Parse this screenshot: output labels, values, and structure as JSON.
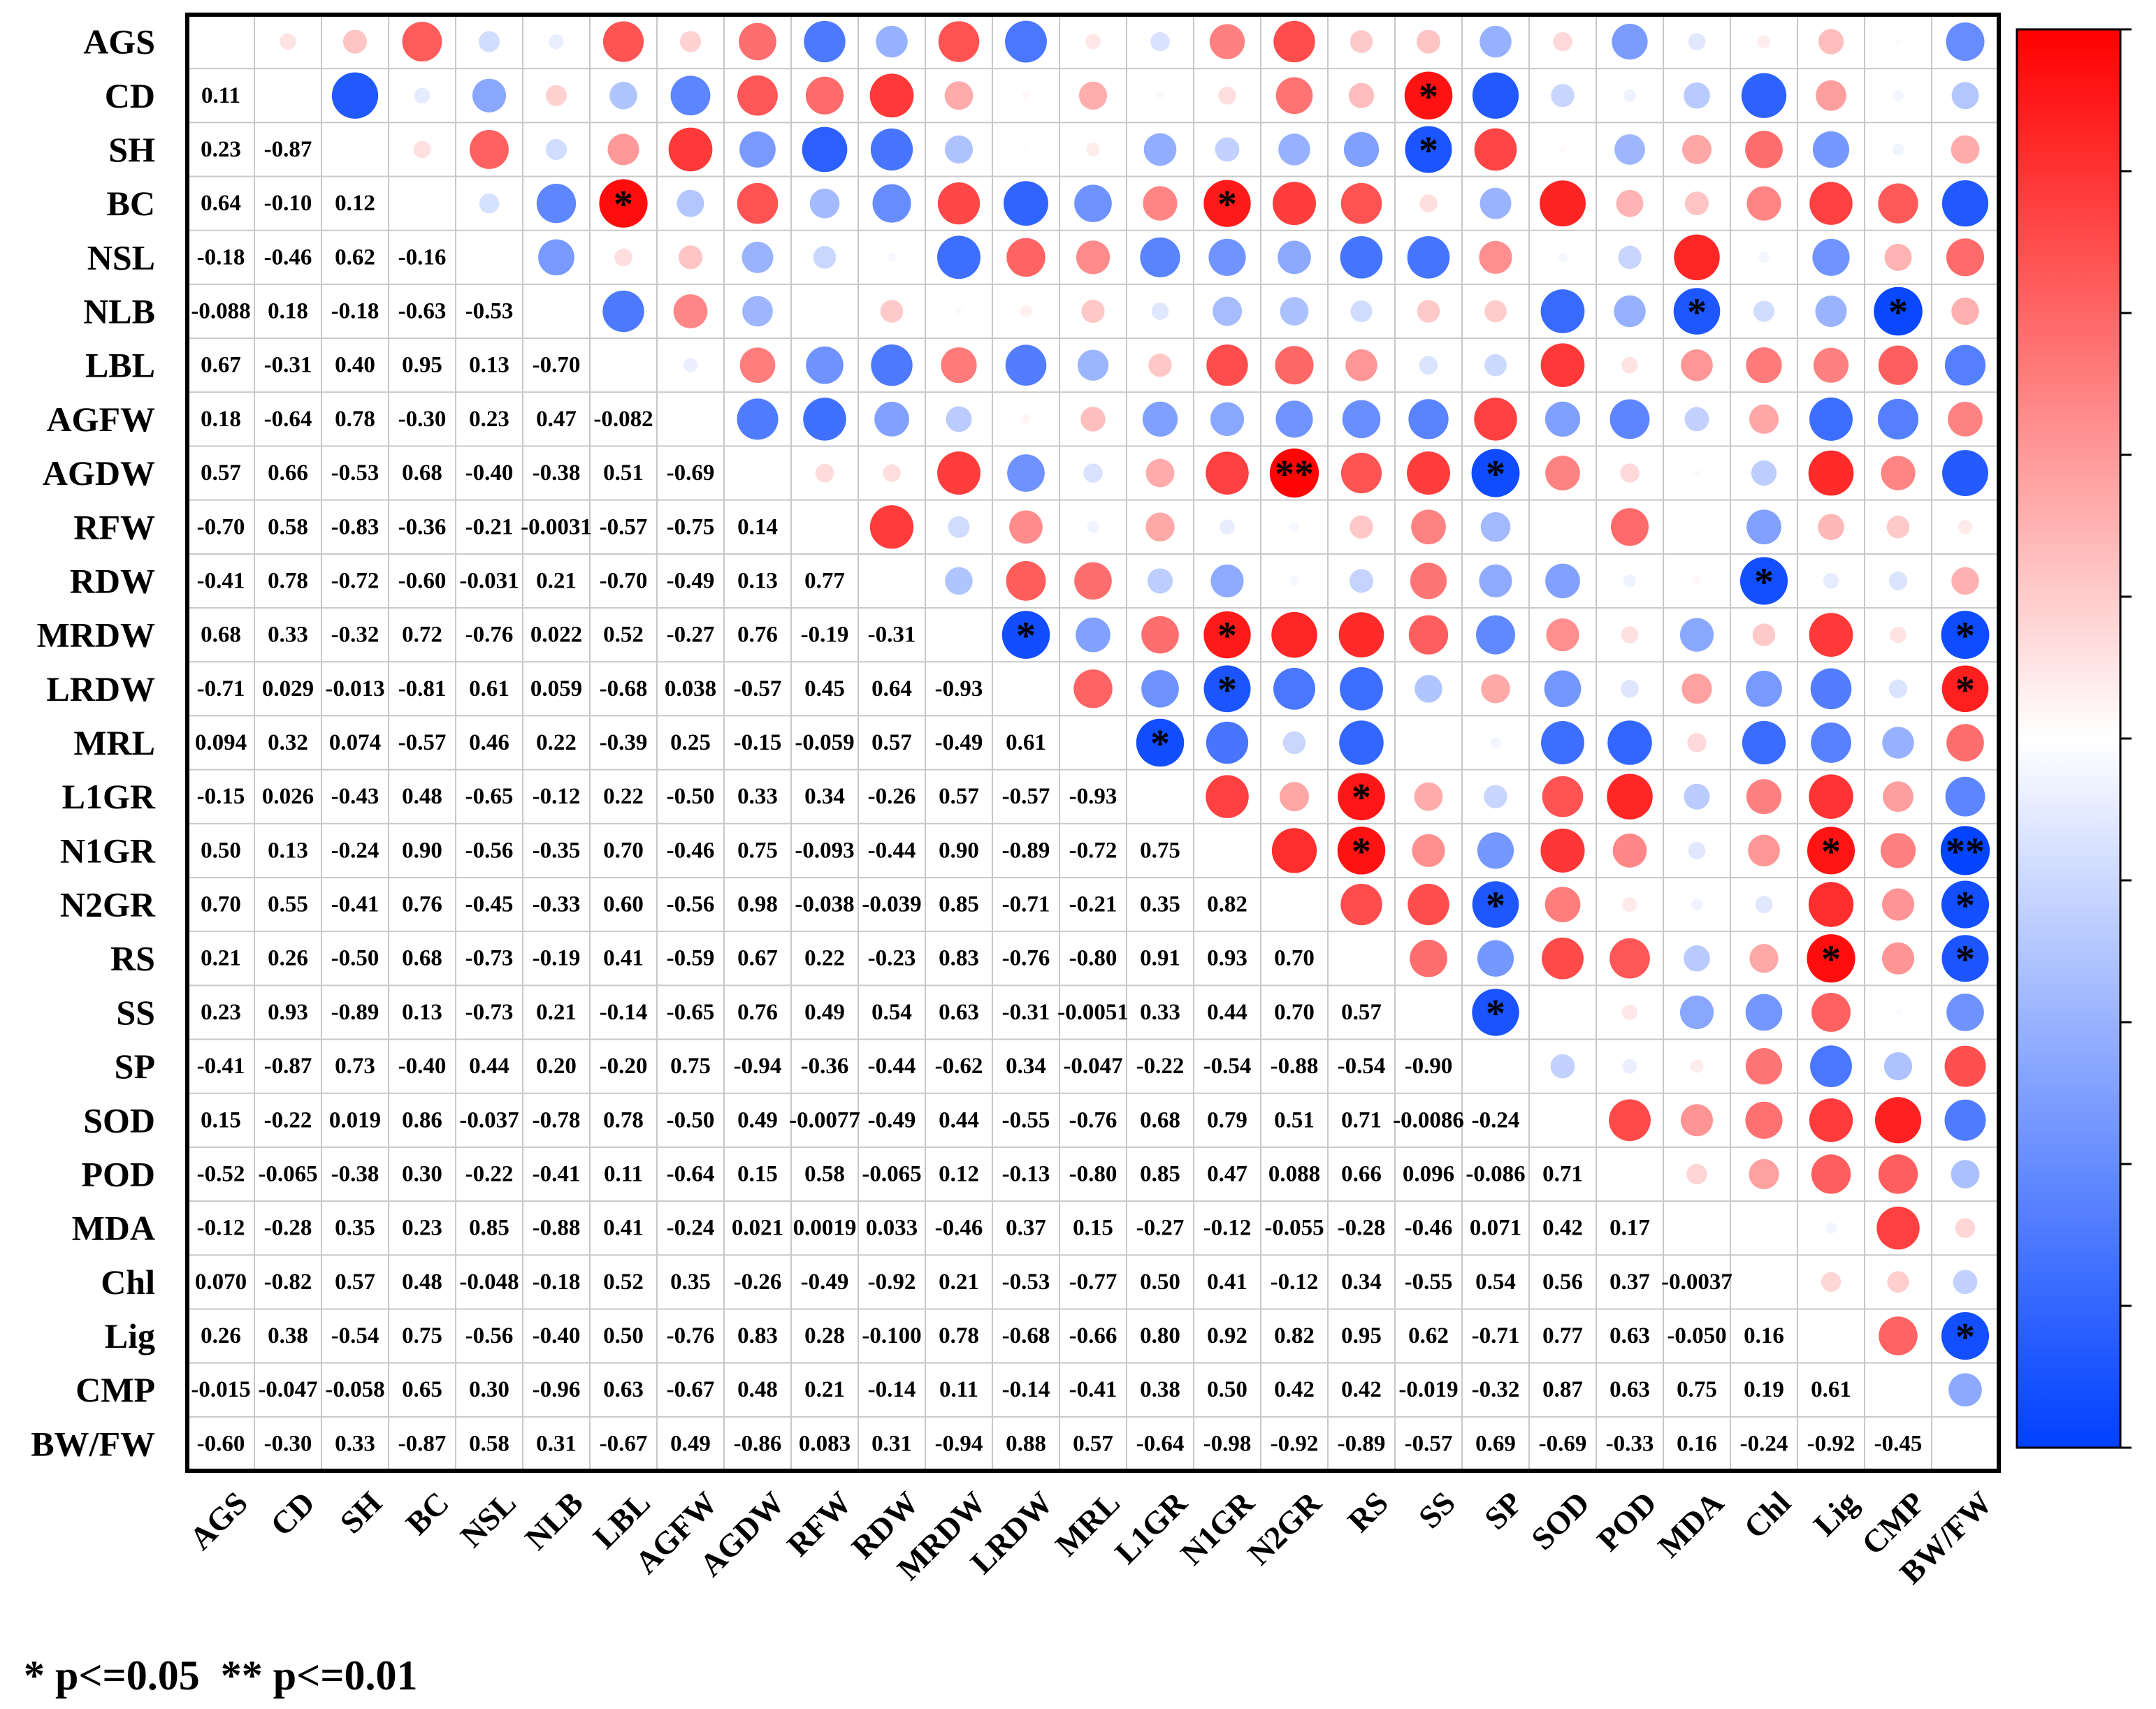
{
  "chart_data": {
    "type": "heatmap",
    "subtype": "correlation-matrix",
    "lower_triangle": "correlation coefficients as numbers",
    "upper_triangle": "circles, size and color by correlation",
    "variables": [
      "AGS",
      "CD",
      "SH",
      "BC",
      "NSL",
      "NLB",
      "LBL",
      "AGFW",
      "AGDW",
      "RFW",
      "RDW",
      "MRDW",
      "LRDW",
      "MRL",
      "L1GR",
      "N1GR",
      "N2GR",
      "RS",
      "SS",
      "SP",
      "SOD",
      "POD",
      "MDA",
      "Chl",
      "Lig",
      "CMP",
      "BW/FW"
    ],
    "lower_labels": [
      [],
      [
        "0.11"
      ],
      [
        "0.23",
        "-0.87"
      ],
      [
        "0.64",
        "-0.10",
        "0.12"
      ],
      [
        "-0.18",
        "-0.46",
        "0.62",
        "-0.16"
      ],
      [
        "-0.088",
        "0.18",
        "-0.18",
        "-0.63",
        "-0.53"
      ],
      [
        "0.67",
        "-0.31",
        "0.40",
        "0.95",
        "0.13",
        "-0.70"
      ],
      [
        "0.18",
        "-0.64",
        "0.78",
        "-0.30",
        "0.23",
        "0.47",
        "-0.082"
      ],
      [
        "0.57",
        "0.66",
        "-0.53",
        "0.68",
        "-0.40",
        "-0.38",
        "0.51",
        "-0.69"
      ],
      [
        "-0.70",
        "0.58",
        "-0.83",
        "-0.36",
        "-0.21",
        "-0.0031",
        "-0.57",
        "-0.75",
        "0.14"
      ],
      [
        "-0.41",
        "0.78",
        "-0.72",
        "-0.60",
        "-0.031",
        "0.21",
        "-0.70",
        "-0.49",
        "0.13",
        "0.77"
      ],
      [
        "0.68",
        "0.33",
        "-0.32",
        "0.72",
        "-0.76",
        "0.022",
        "0.52",
        "-0.27",
        "0.76",
        "-0.19",
        "-0.31"
      ],
      [
        "-0.71",
        "0.029",
        "-0.013",
        "-0.81",
        "0.61",
        "0.059",
        "-0.68",
        "0.038",
        "-0.57",
        "0.45",
        "0.64",
        "-0.93"
      ],
      [
        "0.094",
        "0.32",
        "0.074",
        "-0.57",
        "0.46",
        "0.22",
        "-0.39",
        "0.25",
        "-0.15",
        "-0.059",
        "0.57",
        "-0.49",
        "0.61"
      ],
      [
        "-0.15",
        "0.026",
        "-0.43",
        "0.48",
        "-0.65",
        "-0.12",
        "0.22",
        "-0.50",
        "0.33",
        "0.34",
        "-0.26",
        "0.57",
        "-0.57",
        "-0.93"
      ],
      [
        "0.50",
        "0.13",
        "-0.24",
        "0.90",
        "-0.56",
        "-0.35",
        "0.70",
        "-0.46",
        "0.75",
        "-0.093",
        "-0.44",
        "0.90",
        "-0.89",
        "-0.72",
        "0.75"
      ],
      [
        "0.70",
        "0.55",
        "-0.41",
        "0.76",
        "-0.45",
        "-0.33",
        "0.60",
        "-0.56",
        "0.98",
        "-0.038",
        "-0.039",
        "0.85",
        "-0.71",
        "-0.21",
        "0.35",
        "0.82"
      ],
      [
        "0.21",
        "0.26",
        "-0.50",
        "0.68",
        "-0.73",
        "-0.19",
        "0.41",
        "-0.59",
        "0.67",
        "0.22",
        "-0.23",
        "0.83",
        "-0.76",
        "-0.80",
        "0.91",
        "0.93",
        "0.70"
      ],
      [
        "0.23",
        "0.93",
        "-0.89",
        "0.13",
        "-0.73",
        "0.21",
        "-0.14",
        "-0.65",
        "0.76",
        "0.49",
        "0.54",
        "0.63",
        "-0.31",
        "-0.0051",
        "0.33",
        "0.44",
        "0.70",
        "0.57"
      ],
      [
        "-0.41",
        "-0.87",
        "0.73",
        "-0.40",
        "0.44",
        "0.20",
        "-0.20",
        "0.75",
        "-0.94",
        "-0.36",
        "-0.44",
        "-0.62",
        "0.34",
        "-0.047",
        "-0.22",
        "-0.54",
        "-0.88",
        "-0.54",
        "-0.90"
      ],
      [
        "0.15",
        "-0.22",
        "0.019",
        "0.86",
        "-0.037",
        "-0.78",
        "0.78",
        "-0.50",
        "0.49",
        "-0.0077",
        "-0.49",
        "0.44",
        "-0.55",
        "-0.76",
        "0.68",
        "0.79",
        "0.51",
        "0.71",
        "-0.0086",
        "-0.24"
      ],
      [
        "-0.52",
        "-0.065",
        "-0.38",
        "0.30",
        "-0.22",
        "-0.41",
        "0.11",
        "-0.64",
        "0.15",
        "0.58",
        "-0.065",
        "0.12",
        "-0.13",
        "-0.80",
        "0.85",
        "0.47",
        "0.088",
        "0.66",
        "0.096",
        "-0.086",
        "0.71"
      ],
      [
        "-0.12",
        "-0.28",
        "0.35",
        "0.23",
        "0.85",
        "-0.88",
        "0.41",
        "-0.24",
        "0.021",
        "0.0019",
        "0.033",
        "-0.46",
        "0.37",
        "0.15",
        "-0.27",
        "-0.12",
        "-0.055",
        "-0.28",
        "-0.46",
        "0.071",
        "0.42",
        "0.17"
      ],
      [
        "0.070",
        "-0.82",
        "0.57",
        "0.48",
        "-0.048",
        "-0.18",
        "0.52",
        "0.35",
        "-0.26",
        "-0.49",
        "-0.92",
        "0.21",
        "-0.53",
        "-0.77",
        "0.50",
        "0.41",
        "-0.12",
        "0.34",
        "-0.55",
        "0.54",
        "0.56",
        "0.37",
        "-0.0037"
      ],
      [
        "0.26",
        "0.38",
        "-0.54",
        "0.75",
        "-0.56",
        "-0.40",
        "0.50",
        "-0.76",
        "0.83",
        "0.28",
        "-0.100",
        "0.78",
        "-0.68",
        "-0.66",
        "0.80",
        "0.92",
        "0.82",
        "0.95",
        "0.62",
        "-0.71",
        "0.77",
        "0.63",
        "-0.050",
        "0.16"
      ],
      [
        "-0.015",
        "-0.047",
        "-0.058",
        "0.65",
        "0.30",
        "-0.96",
        "0.63",
        "-0.67",
        "0.48",
        "0.21",
        "-0.14",
        "0.11",
        "-0.14",
        "-0.41",
        "0.38",
        "0.50",
        "0.42",
        "0.42",
        "-0.019",
        "-0.32",
        "0.87",
        "0.63",
        "0.75",
        "0.19",
        "0.61"
      ],
      [
        "-0.60",
        "-0.30",
        "0.33",
        "-0.87",
        "0.58",
        "0.31",
        "-0.67",
        "0.49",
        "-0.86",
        "0.083",
        "0.31",
        "-0.94",
        "0.88",
        "0.57",
        "-0.64",
        "-0.98",
        "-0.92",
        "-0.89",
        "-0.57",
        "0.69",
        "-0.69",
        "-0.33",
        "0.16",
        "-0.24",
        "-0.92",
        "-0.45"
      ]
    ],
    "significance": [
      {
        "row": "CD",
        "col": "SS",
        "mark": "*"
      },
      {
        "row": "SH",
        "col": "SS",
        "mark": "*"
      },
      {
        "row": "BC",
        "col": "LBL",
        "mark": "*"
      },
      {
        "row": "BC",
        "col": "N1GR",
        "mark": "*"
      },
      {
        "row": "NLB",
        "col": "MDA",
        "mark": "*"
      },
      {
        "row": "NLB",
        "col": "CMP",
        "mark": "*"
      },
      {
        "row": "AGDW",
        "col": "N2GR",
        "mark": "**"
      },
      {
        "row": "AGDW",
        "col": "SP",
        "mark": "*"
      },
      {
        "row": "RDW",
        "col": "Chl",
        "mark": "*"
      },
      {
        "row": "MRDW",
        "col": "LRDW",
        "mark": "*"
      },
      {
        "row": "MRDW",
        "col": "N1GR",
        "mark": "*"
      },
      {
        "row": "MRDW",
        "col": "BW/FW",
        "mark": "*"
      },
      {
        "row": "LRDW",
        "col": "N1GR",
        "mark": "*"
      },
      {
        "row": "LRDW",
        "col": "BW/FW",
        "mark": "*"
      },
      {
        "row": "MRL",
        "col": "L1GR",
        "mark": "*"
      },
      {
        "row": "L1GR",
        "col": "RS",
        "mark": "*"
      },
      {
        "row": "N1GR",
        "col": "RS",
        "mark": "*"
      },
      {
        "row": "N1GR",
        "col": "Lig",
        "mark": "*"
      },
      {
        "row": "N1GR",
        "col": "BW/FW",
        "mark": "**"
      },
      {
        "row": "N2GR",
        "col": "SP",
        "mark": "*"
      },
      {
        "row": "N2GR",
        "col": "BW/FW",
        "mark": "*"
      },
      {
        "row": "RS",
        "col": "Lig",
        "mark": "*"
      },
      {
        "row": "RS",
        "col": "BW/FW",
        "mark": "*"
      },
      {
        "row": "SS",
        "col": "SP",
        "mark": "*"
      },
      {
        "row": "Lig",
        "col": "BW/FW",
        "mark": "*"
      }
    ],
    "colorbar": {
      "min": -1,
      "max": 1,
      "low_color": "#0040ff",
      "mid_color": "#ffffff",
      "high_color": "#ff0000"
    },
    "footnote": "* p<=0.05  ** p<=0.01"
  }
}
